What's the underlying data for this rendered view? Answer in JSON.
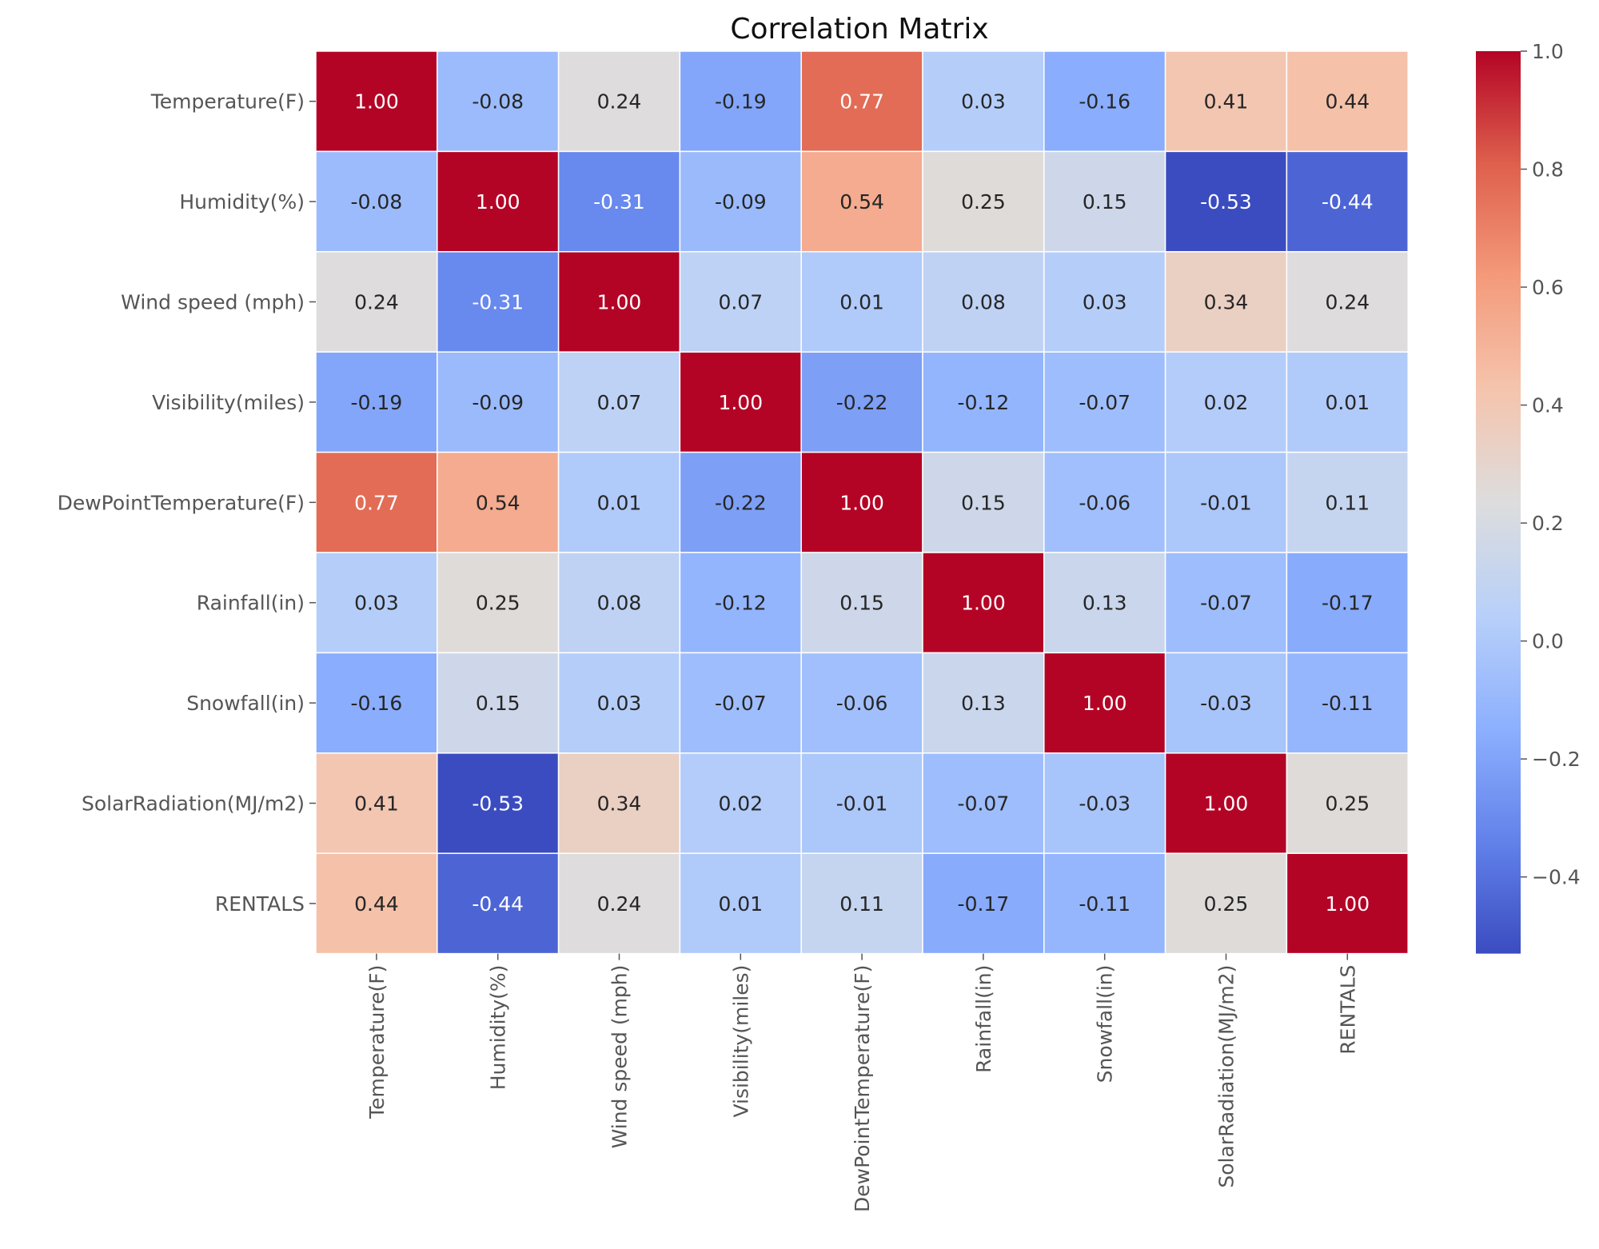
{
  "chart_data": {
    "type": "heatmap",
    "title": "Correlation Matrix",
    "xlabel": "",
    "ylabel": "",
    "labels": [
      "Temperature(F)",
      "Humidity(%)",
      "Wind speed (mph)",
      "Visibility(miles)",
      "DewPointTemperature(F)",
      "Rainfall(in)",
      "Snowfall(in)",
      "SolarRadiation(MJ/m2)",
      "RENTALS"
    ],
    "matrix": [
      [
        1.0,
        -0.08,
        0.24,
        -0.19,
        0.77,
        0.03,
        -0.16,
        0.41,
        0.44
      ],
      [
        -0.08,
        1.0,
        -0.31,
        -0.09,
        0.54,
        0.25,
        0.15,
        -0.53,
        -0.44
      ],
      [
        0.24,
        -0.31,
        1.0,
        0.07,
        0.01,
        0.08,
        0.03,
        0.34,
        0.24
      ],
      [
        -0.19,
        -0.09,
        0.07,
        1.0,
        -0.22,
        -0.12,
        -0.07,
        0.02,
        0.01
      ],
      [
        0.77,
        0.54,
        0.01,
        -0.22,
        1.0,
        0.15,
        -0.06,
        -0.01,
        0.11
      ],
      [
        0.03,
        0.25,
        0.08,
        -0.12,
        0.15,
        1.0,
        0.13,
        -0.07,
        -0.17
      ],
      [
        -0.16,
        0.15,
        0.03,
        -0.07,
        -0.06,
        0.13,
        1.0,
        -0.03,
        -0.11
      ],
      [
        0.41,
        -0.53,
        0.34,
        0.02,
        -0.01,
        -0.07,
        -0.03,
        1.0,
        0.25
      ],
      [
        0.44,
        -0.44,
        0.24,
        0.01,
        0.11,
        -0.17,
        -0.11,
        0.25,
        1.0
      ]
    ],
    "value_format": "2-decimal",
    "colormap": "coolwarm",
    "colorbar": {
      "vmin": -0.53,
      "vmax": 1.0,
      "ticks": [
        1.0,
        0.8,
        0.6,
        0.4,
        0.2,
        0.0,
        -0.2,
        -0.4
      ],
      "tick_labels": [
        "1.0",
        "0.8",
        "0.6",
        "0.4",
        "0.2",
        "0.0",
        "−0.2",
        "−0.4"
      ]
    },
    "colors": {
      "low": "#3b4cc0",
      "mid": "#dddddd",
      "high": "#b40426",
      "gridline": "#ffffff",
      "text_dark": "#262626",
      "text_light": "#ffffff",
      "axis_text": "#555555"
    }
  }
}
